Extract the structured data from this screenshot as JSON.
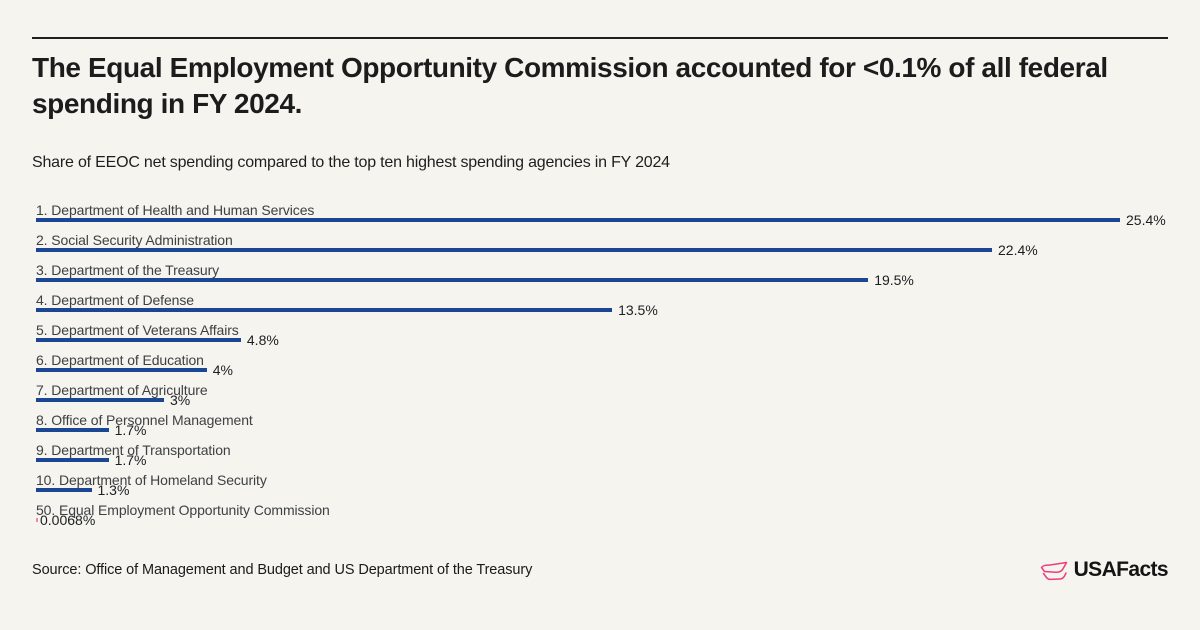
{
  "page": {
    "background": "#F5F4EF",
    "top_rule_color": "#1D1F21"
  },
  "header": {
    "title": "The Equal Employment Opportunity Commission accounted for <0.1% of all federal spending in FY 2024.",
    "title_lines": [
      "The Equal Employment Opportunity Commission accounted for <0.1% of all federal",
      "spending in FY 2024."
    ],
    "subtitle": "Share of EEOC net spending compared to the top ten highest spending agencies in FY 2024"
  },
  "chart_data": {
    "type": "bar",
    "orientation": "horizontal",
    "title": "Share of EEOC net spending compared to the top ten highest spending agencies in FY 2024",
    "unit": "%",
    "xlim": [
      0,
      25.4
    ],
    "grid": false,
    "legend": false,
    "bar_color": "#1B4693",
    "highlight_bar_color": "#F08C9B",
    "highlight_index": 10,
    "categories": [
      "1. Department of Health and Human Services",
      "2. Social Security Administration",
      "3. Department of the Treasury",
      "4. Department of Defense",
      "5. Department of Veterans Affairs",
      "6. Department of Education",
      "7. Department of Agriculture",
      "8. Office of Personnel Management",
      "9. Department of Transportation",
      "10. Department of Homeland Security",
      "50. Equal Employment Opportunity Commission"
    ],
    "values": [
      25.4,
      22.4,
      19.5,
      13.5,
      4.8,
      4,
      3,
      1.7,
      1.7,
      1.3,
      0.0068
    ],
    "value_labels": [
      "25.4%",
      "22.4%",
      "19.5%",
      "13.5%",
      "4.8%",
      "4%",
      "3%",
      "1.7%",
      "1.7%",
      "1.3%",
      "0.0068%"
    ]
  },
  "footer": {
    "source": "Source: Office of Management and Budget and US Department of the Treasury",
    "brand_name": "USAFacts",
    "brand_color": "#ED3E7E"
  }
}
